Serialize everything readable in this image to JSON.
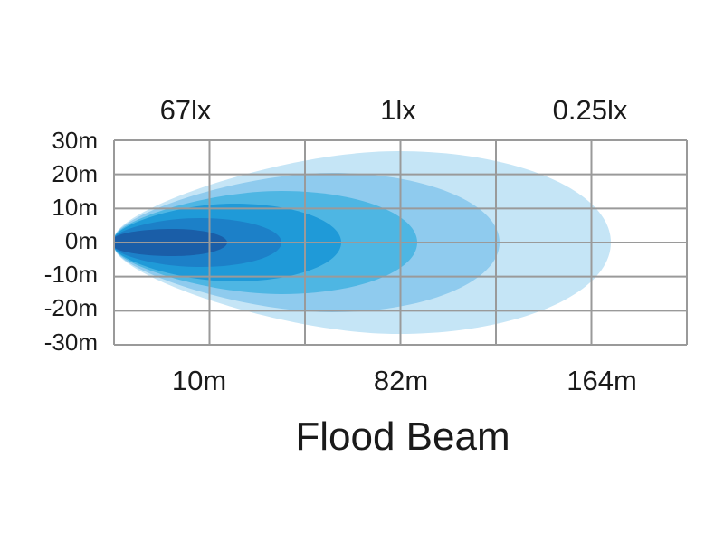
{
  "chart_data": {
    "type": "area",
    "title": "Flood Beam",
    "y_ticks": [
      "30m",
      "20m",
      "10m",
      "0m",
      "-10m",
      "-20m",
      "-30m"
    ],
    "y_values": [
      30,
      20,
      10,
      0,
      -10,
      -20,
      -30
    ],
    "ylim": [
      -30,
      30
    ],
    "x_ticks": [
      "10m",
      "82m",
      "164m"
    ],
    "lux_labels": [
      "67lx",
      "1lx",
      "0.25lx"
    ],
    "grid": true,
    "colors": {
      "grid": "#9a9a9a",
      "zones": [
        "#c5e5f6",
        "#8fcbee",
        "#4eb6e3",
        "#1f9ad8",
        "#1c80c8",
        "#1a5ea8"
      ]
    }
  }
}
